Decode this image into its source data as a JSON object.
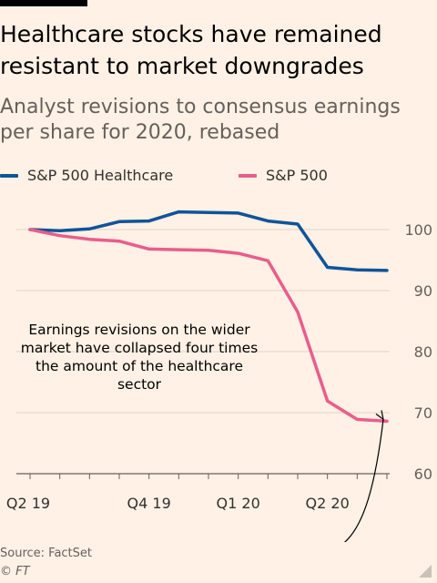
{
  "title": "Healthcare stocks have remained resistant to market downgrades",
  "subtitle": "Analyst revisions to consensus earnings per share for 2020, rebased",
  "source": "Source: FactSet",
  "copyright": "© FT",
  "annotation": "Earnings revisions on the wider market have collapsed four times the amount of the healthcare sector",
  "chart_data": {
    "type": "line",
    "title": "Healthcare stocks have remained resistant to market downgrades",
    "subtitle": "Analyst revisions to consensus earnings per share for 2020, rebased",
    "xlabel": "",
    "ylabel": "",
    "categories": [
      "Q2 19",
      "",
      "",
      "",
      "Q4 19",
      "",
      "",
      "Q1 20",
      "",
      "",
      "Q2 20",
      "",
      ""
    ],
    "x_tick_labels": [
      "Q2 19",
      "Q4 19",
      "Q1 20",
      "Q2 20"
    ],
    "ylim": [
      60,
      105
    ],
    "y_ticks": [
      60,
      70,
      80,
      90,
      100
    ],
    "y_axis_side": "right",
    "grid": true,
    "legend": "top",
    "series": [
      {
        "name": "S&P 500 Healthcare",
        "color": "#0f5499",
        "values": [
          100,
          99.8,
          100.1,
          101.3,
          101.4,
          102.9,
          102.8,
          102.7,
          101.4,
          100.9,
          93.8,
          93.4,
          93.3
        ]
      },
      {
        "name": "S&P 500",
        "color": "#e95d8c",
        "values": [
          100,
          99.0,
          98.4,
          98.1,
          96.8,
          96.7,
          96.6,
          96.1,
          94.9,
          86.5,
          71.9,
          68.9,
          68.6
        ]
      }
    ]
  }
}
